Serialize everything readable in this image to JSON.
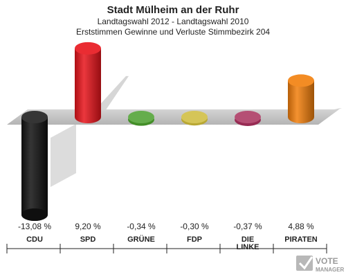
{
  "chart_data": {
    "type": "bar",
    "title": "Stadt Mülheim an der Ruhr",
    "subtitle": "Landtagswahl 2012 - Landtagswahl 2010",
    "subtitle2": "Erststimmen Gewinne und Verluste Stimmbezirk 204",
    "categories": [
      "CDU",
      "SPD",
      "GRÜNE",
      "FDP",
      "DIE LINKE",
      "PIRATEN"
    ],
    "values": [
      -13.08,
      9.2,
      -0.34,
      -0.3,
      -0.37,
      4.88
    ],
    "value_labels": [
      "-13,08 %",
      "9,20 %",
      "-0,34 %",
      "-0,30 %",
      "-0,37 %",
      "4,88 %"
    ],
    "colors": [
      "#111111",
      "#e8141b",
      "#4a9e2c",
      "#cdbb3a",
      "#a8305c",
      "#f27f0c"
    ],
    "ylim": [
      -13.08,
      9.2
    ],
    "grid": false
  },
  "branding": {
    "logo_text": "VOTE",
    "logo_subtext": "MANAGER"
  }
}
